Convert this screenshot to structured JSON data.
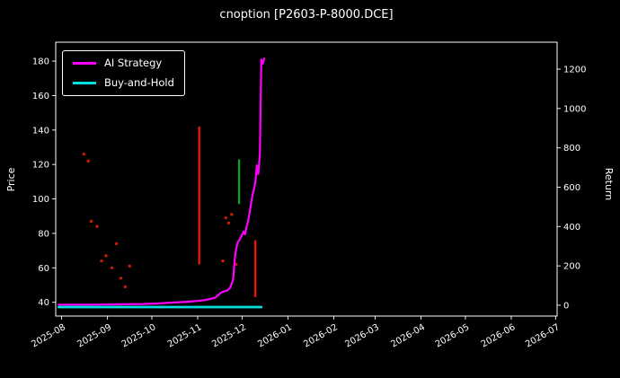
{
  "chart_data": {
    "type": "line",
    "title": "cnoption [P2603-P-8000.DCE]",
    "ylabel_left": "Price",
    "ylabel_right": "Return",
    "grid": false,
    "legend_position": "upper-left",
    "background": "#000000",
    "xlim": [
      "2025-07-28",
      "2026-07-02"
    ],
    "price_ylim": [
      32,
      191
    ],
    "return_ylim": [
      -55,
      1337
    ],
    "price_ticks": [
      40,
      60,
      80,
      100,
      120,
      140,
      160,
      180
    ],
    "return_ticks": [
      0,
      200,
      400,
      600,
      800,
      1000,
      1200
    ],
    "x_ticks": [
      {
        "date": "2025-08-01",
        "label": "2025-08"
      },
      {
        "date": "2025-09-01",
        "label": "2025-09"
      },
      {
        "date": "2025-10-01",
        "label": "2025-10"
      },
      {
        "date": "2025-11-01",
        "label": "2025-11"
      },
      {
        "date": "2025-12-01",
        "label": "2025-12"
      },
      {
        "date": "2026-01-01",
        "label": "2026-01"
      },
      {
        "date": "2026-02-01",
        "label": "2026-02"
      },
      {
        "date": "2026-03-01",
        "label": "2026-03"
      },
      {
        "date": "2026-04-01",
        "label": "2026-04"
      },
      {
        "date": "2026-05-01",
        "label": "2026-05"
      },
      {
        "date": "2026-06-01",
        "label": "2026-06"
      },
      {
        "date": "2026-07-01",
        "label": "2026-07"
      }
    ],
    "series": [
      {
        "name": "AI Strategy",
        "color": "#ff00ff",
        "width": 2.2,
        "axis": "left",
        "points": [
          [
            "2025-07-30",
            38.6
          ],
          [
            "2025-08-20",
            38.6
          ],
          [
            "2025-09-05",
            38.8
          ],
          [
            "2025-09-25",
            39.0
          ],
          [
            "2025-10-05",
            39.3
          ],
          [
            "2025-10-15",
            39.8
          ],
          [
            "2025-10-25",
            40.3
          ],
          [
            "2025-11-01",
            40.8
          ],
          [
            "2025-11-06",
            41.3
          ],
          [
            "2025-11-10",
            42.0
          ],
          [
            "2025-11-13",
            42.8
          ],
          [
            "2025-11-15",
            44.2
          ],
          [
            "2025-11-17",
            45.8
          ],
          [
            "2025-11-19",
            46.3
          ],
          [
            "2025-11-21",
            46.8
          ],
          [
            "2025-11-23",
            48.5
          ],
          [
            "2025-11-24",
            51.0
          ],
          [
            "2025-11-25",
            53.5
          ],
          [
            "2025-11-26",
            65.0
          ],
          [
            "2025-11-27",
            71.0
          ],
          [
            "2025-11-28",
            74.5
          ],
          [
            "2025-11-29",
            76.0
          ],
          [
            "2025-11-30",
            77.5
          ],
          [
            "2025-12-01",
            79.0
          ],
          [
            "2025-12-02",
            81.0
          ],
          [
            "2025-12-03",
            79.5
          ],
          [
            "2025-12-04",
            83.5
          ],
          [
            "2025-12-05",
            87.0
          ],
          [
            "2025-12-06",
            91.5
          ],
          [
            "2025-12-07",
            97.0
          ],
          [
            "2025-12-08",
            102.0
          ],
          [
            "2025-12-09",
            105.5
          ],
          [
            "2025-12-10",
            110.0
          ],
          [
            "2025-12-11",
            119.5
          ],
          [
            "2025-12-12",
            114.5
          ],
          [
            "2025-12-13",
            126.0
          ],
          [
            "2025-12-14",
            181.0
          ],
          [
            "2025-12-15",
            178.5
          ],
          [
            "2025-12-16",
            181.5
          ]
        ]
      },
      {
        "name": "Buy-and-Hold",
        "color": "#00e0e0",
        "width": 2.8,
        "axis": "left",
        "points": [
          [
            "2025-07-30",
            37.2
          ],
          [
            "2025-12-14",
            37.2
          ]
        ]
      }
    ],
    "scatter": {
      "name": "trade-markers",
      "color": "#cc1a00",
      "points": [
        [
          "2025-08-16",
          126
        ],
        [
          "2025-08-19",
          122
        ],
        [
          "2025-08-21",
          87
        ],
        [
          "2025-08-25",
          84
        ],
        [
          "2025-08-28",
          64
        ],
        [
          "2025-08-31",
          67
        ],
        [
          "2025-09-04",
          60
        ],
        [
          "2025-09-07",
          74
        ],
        [
          "2025-09-10",
          54
        ],
        [
          "2025-09-13",
          49
        ],
        [
          "2025-09-16",
          61
        ],
        [
          "2025-11-18",
          64
        ],
        [
          "2025-11-20",
          89
        ],
        [
          "2025-11-22",
          86
        ],
        [
          "2025-11-24",
          91
        ],
        [
          "2025-11-27",
          62
        ]
      ]
    },
    "segments": [
      {
        "date": "2025-11-02",
        "from": 62,
        "to": 142,
        "color": "#ff1500"
      },
      {
        "date": "2025-11-29",
        "from": 97,
        "to": 123,
        "color": "#00aa22"
      },
      {
        "date": "2025-12-10",
        "from": 43,
        "to": 76,
        "color": "#ff1500"
      }
    ]
  }
}
